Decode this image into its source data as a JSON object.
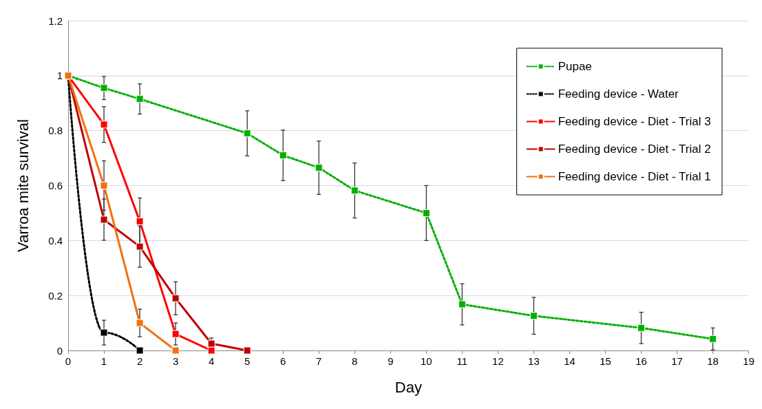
{
  "chart_data": {
    "type": "line",
    "xlabel": "Day",
    "ylabel": "Varroa mite survival",
    "xlim": [
      0,
      19
    ],
    "xticks": [
      0,
      1,
      2,
      3,
      4,
      5,
      6,
      7,
      8,
      9,
      10,
      11,
      12,
      13,
      14,
      15,
      16,
      17,
      18,
      19
    ],
    "ylim": [
      0,
      1.2
    ],
    "yticks": [
      0,
      0.2,
      0.4,
      0.6,
      0.8,
      1,
      1.2
    ],
    "grid": "y",
    "legend": "top right",
    "marker": "square",
    "series": [
      {
        "name": "Pupae",
        "color": "#00b000",
        "line_style": "dotted",
        "x": [
          0,
          1,
          2,
          5,
          6,
          7,
          8,
          10,
          11,
          13,
          16,
          18
        ],
        "values": [
          1,
          0.955,
          0.915,
          0.79,
          0.71,
          0.665,
          0.582,
          0.5,
          0.168,
          0.126,
          0.082,
          0.042
        ],
        "errors": [
          null,
          0.042,
          0.055,
          0.082,
          0.092,
          0.097,
          0.1,
          0.1,
          0.075,
          0.067,
          0.057,
          0.04
        ]
      },
      {
        "name": "Feeding device - Water",
        "color": "#000000",
        "line_style": "dotted",
        "x": [
          0,
          1,
          2
        ],
        "values": [
          1,
          0.065,
          0
        ],
        "errors": [
          null,
          0.045,
          null
        ]
      },
      {
        "name": "Feeding device - Diet - Trial 3",
        "color": "#ff0000",
        "line_style": "solid",
        "x": [
          0,
          1,
          2,
          3,
          4
        ],
        "values": [
          1,
          0.822,
          0.47,
          0.06,
          0
        ],
        "errors": [
          null,
          0.065,
          0.085,
          0.04,
          null
        ]
      },
      {
        "name": "Feeding device - Diet - Trial 2",
        "color": "#c00000",
        "line_style": "solid",
        "x": [
          0,
          1,
          2,
          3,
          4,
          5
        ],
        "values": [
          1,
          0.476,
          0.378,
          0.19,
          0.025,
          0
        ],
        "errors": [
          null,
          0.075,
          0.075,
          0.06,
          0.02,
          null
        ]
      },
      {
        "name": "Feeding device - Diet - Trial 1",
        "color": "#f07010",
        "line_style": "solid",
        "x": [
          0,
          1,
          2,
          3
        ],
        "values": [
          1,
          0.6,
          0.1,
          0
        ],
        "errors": [
          null,
          0.09,
          0.05,
          null
        ]
      }
    ]
  }
}
